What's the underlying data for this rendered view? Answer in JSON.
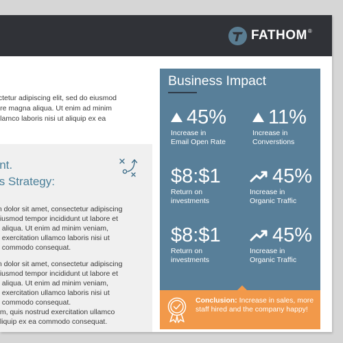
{
  "brand": {
    "name": "FATHOM",
    "trademark": "®"
  },
  "intro": {
    "lines": [
      "ectetur adipiscing elit, sed do eiusmod",
      "lore magna aliqua. Ut enim ad minim",
      "ullamco laboris nisi ut aliquip ex ea"
    ]
  },
  "strategy": {
    "title_lines": [
      "oint.",
      "n's Strategy:"
    ],
    "paragraph1": [
      "m dolor sit amet, consectetur adipiscing",
      " eiusmod tempor incididunt ut labore et",
      "a aliqua. Ut enim ad minim veniam,",
      "d exercitation ullamco laboris nisi ut",
      "a commodo consequat."
    ],
    "paragraph2": [
      "m dolor sit amet, consectetur adipiscing",
      " eiusmod tempor incididunt ut labore et",
      "a aliqua. Ut enim ad minim veniam,",
      "d exercitation ullamco laboris nisi ut",
      "a commodo consequat.",
      "am, quis nostrud exercitation ullamco",
      "aliquip ex ea commodo consequat."
    ]
  },
  "impact": {
    "title": "Business Impact",
    "stats": [
      {
        "value": "45%",
        "icon": "triangle-up-icon",
        "label_lines": [
          "Increase in",
          "Email Open Rate"
        ]
      },
      {
        "value": "11%",
        "icon": "triangle-up-icon",
        "label_lines": [
          "Increase in",
          "Converstions"
        ]
      },
      {
        "value": "$8:$1",
        "icon": "",
        "label_lines": [
          "Return on",
          "investments"
        ]
      },
      {
        "value": "45%",
        "icon": "trend-up-icon",
        "label_lines": [
          "Increase in",
          "Organic Traffic"
        ]
      },
      {
        "value": "$8:$1",
        "icon": "",
        "label_lines": [
          "Return on",
          "investments"
        ]
      },
      {
        "value": "45%",
        "icon": "trend-up-icon",
        "label_lines": [
          "Increase in",
          "Organic Traffic"
        ]
      }
    ]
  },
  "conclusion": {
    "label": "Conclusion:",
    "text": " Increase in sales, more staff hired and the company happy!"
  },
  "colors": {
    "header": "#303237",
    "panel": "#587f99",
    "accent": "#f2994a",
    "title_blue": "#4a7f99"
  }
}
